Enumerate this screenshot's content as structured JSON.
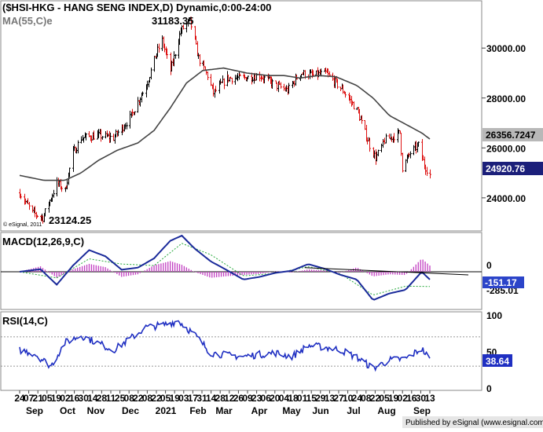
{
  "header": {
    "title": "($HSI-HKG - HANG SENG INDEX,D) Dynamic,0:00-24:00",
    "ma_label": "MA(55,C)e",
    "copyright": "© eSignal, 2011",
    "publisher": "Published by eSignal (www.esignal.com)"
  },
  "annotations": {
    "high": "31183.35",
    "low": "23124.25"
  },
  "price_badges": {
    "ma": "26356.7247",
    "close": "24920.76"
  },
  "macd_badges": {
    "macd": "-151.17",
    "signal": "-285.01"
  },
  "rsi_badge": "38.64",
  "x_axis": {
    "day_ticks": [
      "24",
      "07",
      "21",
      "05",
      "19",
      "02",
      "16",
      "30",
      "14",
      "28",
      "11",
      "25",
      "08",
      "22",
      "08",
      "22",
      "05",
      "19",
      "03",
      "17",
      "31",
      "14",
      "28",
      "12",
      "26",
      "09",
      "23",
      "06",
      "20",
      "04",
      "18",
      "01",
      "15",
      "29",
      "13",
      "27",
      "10",
      "24",
      "08",
      "22",
      "05",
      "19",
      "02",
      "16",
      "30",
      "13"
    ],
    "month_labels": [
      "Sep",
      "Oct",
      "Nov",
      "Dec",
      "2021",
      "Feb",
      "Mar",
      "Apr",
      "May",
      "Jun",
      "Jul",
      "Aug",
      "Sep"
    ]
  },
  "chart_data": [
    {
      "type": "ohlc",
      "title": "($HSI-HKG - HANG SENG INDEX,D) Dynamic,0:00-24:00",
      "xlabel": "",
      "ylabel": "",
      "x_range": [
        "2020-09-24",
        "2021-09-13"
      ],
      "ylim": [
        22800,
        31800
      ],
      "y_ticks": [
        "24000.00",
        "26000.00",
        "28000.00",
        "30000.00"
      ],
      "grid": false,
      "series": [
        {
          "name": "",
          "x": [
            "2020-09-24",
            "2020-10-05",
            "2020-10-14",
            "2020-10-26",
            "2020-11-02",
            "2020-11-09",
            "2020-11-16",
            "2020-11-30",
            "2020-12-14",
            "2020-12-28",
            "2021-01-11",
            "2021-01-20",
            "2021-01-25",
            "2021-02-01",
            "2021-02-10",
            "2021-02-18",
            "2021-02-25",
            "2021-03-05",
            "2021-03-10",
            "2021-03-22",
            "2021-04-05",
            "2021-04-19",
            "2021-05-03",
            "2021-05-13",
            "2021-05-24",
            "2021-06-04",
            "2021-06-15",
            "2021-06-30",
            "2021-07-12",
            "2021-07-23",
            "2021-07-28",
            "2021-08-05",
            "2021-08-18",
            "2021-08-20",
            "2021-08-27",
            "2021-09-03",
            "2021-09-08",
            "2021-09-13"
          ],
          "values": [
            24200,
            23400,
            23200,
            24600,
            24300,
            25800,
            26400,
            26500,
            26400,
            27200,
            28500,
            29800,
            30300,
            29100,
            30700,
            31100,
            29600,
            28900,
            28200,
            28800,
            28800,
            28900,
            28500,
            28300,
            29000,
            28900,
            29000,
            28300,
            27500,
            26100,
            25600,
            26300,
            26600,
            25200,
            25800,
            26100,
            25300,
            24920.76
          ]
        },
        {
          "name": "MA(55,C)e",
          "x": [
            "2020-09-24",
            "2020-10-15",
            "2020-11-02",
            "2020-11-16",
            "2020-12-01",
            "2020-12-17",
            "2021-01-04",
            "2021-01-18",
            "2021-02-01",
            "2021-02-15",
            "2021-03-01",
            "2021-03-19",
            "2021-04-08",
            "2021-04-26",
            "2021-05-10",
            "2021-05-24",
            "2021-06-09",
            "2021-06-24",
            "2021-07-12",
            "2021-07-26",
            "2021-08-09",
            "2021-08-23",
            "2021-09-06",
            "2021-09-13"
          ],
          "values": [
            24900,
            24700,
            24700,
            25000,
            25500,
            25900,
            26200,
            26700,
            27600,
            28600,
            29100,
            29200,
            29000,
            28900,
            28900,
            28800,
            28900,
            28850,
            28500,
            28000,
            27300,
            26950,
            26600,
            26356.72
          ]
        }
      ]
    },
    {
      "type": "line",
      "title": "MACD(12,26,9,C)",
      "ylim": [
        -700,
        700
      ],
      "y_ticks": [
        "0"
      ],
      "series": [
        {
          "name": "MACD",
          "x": [
            "2020-09-24",
            "2020-10-12",
            "2020-10-26",
            "2020-11-09",
            "2020-11-23",
            "2020-12-07",
            "2020-12-21",
            "2021-01-04",
            "2021-01-18",
            "2021-02-01",
            "2021-02-11",
            "2021-02-22",
            "2021-03-08",
            "2021-03-22",
            "2021-04-05",
            "2021-04-19",
            "2021-05-03",
            "2021-05-17",
            "2021-05-31",
            "2021-06-14",
            "2021-06-28",
            "2021-07-12",
            "2021-07-26",
            "2021-08-09",
            "2021-08-23",
            "2021-09-06",
            "2021-09-13"
          ],
          "values": [
            0,
            50,
            -250,
            120,
            420,
            300,
            40,
            80,
            260,
            600,
            700,
            450,
            200,
            30,
            -150,
            -100,
            -20,
            20,
            150,
            60,
            -60,
            -150,
            -550,
            -420,
            -350,
            0,
            -151.17
          ]
        },
        {
          "name": "Signal",
          "x": [
            "2020-09-24",
            "2020-10-26",
            "2020-11-23",
            "2020-12-21",
            "2021-01-18",
            "2021-02-11",
            "2021-03-08",
            "2021-04-05",
            "2021-05-03",
            "2021-05-31",
            "2021-06-28",
            "2021-07-26",
            "2021-08-23",
            "2021-09-13"
          ],
          "values": [
            0,
            -120,
            250,
            150,
            120,
            550,
            330,
            -80,
            -30,
            100,
            -40,
            -450,
            -280,
            -285.01
          ]
        }
      ]
    },
    {
      "type": "line",
      "title": "RSI(14,C)",
      "ylim": [
        0,
        100
      ],
      "y_ticks": [
        "0",
        "50",
        "100"
      ],
      "series": [
        {
          "name": "RSI",
          "x": [
            "2020-09-24",
            "2020-10-07",
            "2020-10-21",
            "2020-11-02",
            "2020-11-16",
            "2020-11-30",
            "2020-12-14",
            "2020-12-28",
            "2021-01-11",
            "2021-01-25",
            "2021-02-08",
            "2021-02-22",
            "2021-03-08",
            "2021-03-22",
            "2021-04-05",
            "2021-04-19",
            "2021-05-03",
            "2021-05-17",
            "2021-05-31",
            "2021-06-14",
            "2021-06-28",
            "2021-07-12",
            "2021-07-26",
            "2021-08-09",
            "2021-08-23",
            "2021-09-06",
            "2021-09-13"
          ],
          "values": [
            52,
            47,
            30,
            62,
            72,
            62,
            52,
            67,
            83,
            86,
            92,
            73,
            48,
            45,
            43,
            46,
            48,
            43,
            58,
            56,
            52,
            42,
            27,
            38,
            40,
            54,
            38.64
          ]
        }
      ]
    }
  ]
}
